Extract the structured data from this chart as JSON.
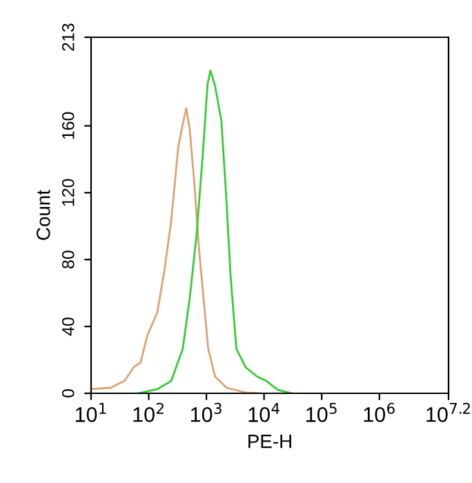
{
  "chart_data": {
    "type": "line",
    "xlabel": "PE-H",
    "ylabel": "Count",
    "log": "x",
    "grid": false,
    "legend": false,
    "xlim": [
      10,
      15848932
    ],
    "xticks": [
      {
        "value": 10,
        "label": "10$^{1}$"
      },
      {
        "value": 100,
        "label": "10$^{2}$"
      },
      {
        "value": 1000,
        "label": "10$^{3}$"
      },
      {
        "value": 10000,
        "label": "10$^{4}$"
      },
      {
        "value": 100000,
        "label": "10$^{5}$"
      },
      {
        "value": 1000000,
        "label": "10$^{6}$"
      },
      {
        "value": 15848932,
        "label": "10$^{7.2}$"
      }
    ],
    "ylim": [
      0,
      213
    ],
    "yticks": [
      0,
      40,
      80,
      120,
      160,
      213
    ],
    "series": [
      {
        "color": "#e0a070",
        "x": [
          10,
          21.9,
          38,
          55,
          72,
          95,
          141,
          186,
          245,
          324,
          389,
          447,
          513,
          617,
          741,
          891,
          1072,
          1413,
          2239,
          4786,
          8318
        ],
        "values": [
          2.5,
          3.3,
          7.4,
          15.6,
          18.4,
          34.8,
          48.5,
          73,
          103,
          147,
          161,
          170.5,
          158,
          126,
          87,
          57,
          27,
          10,
          3.3,
          0.5,
          0
        ]
      },
      {
        "color": "#33cc33",
        "x": [
          66,
          141,
          245,
          389,
          513,
          676,
          871,
          1047,
          1175,
          1413,
          1820,
          2188,
          2630,
          3311,
          4786,
          7586,
          10965,
          17378,
          30200
        ],
        "values": [
          0,
          2.5,
          7.4,
          26.6,
          56.7,
          95,
          144,
          185,
          193,
          184,
          163,
          120,
          70,
          26.6,
          15.6,
          10,
          7.4,
          2,
          0
        ]
      }
    ]
  }
}
